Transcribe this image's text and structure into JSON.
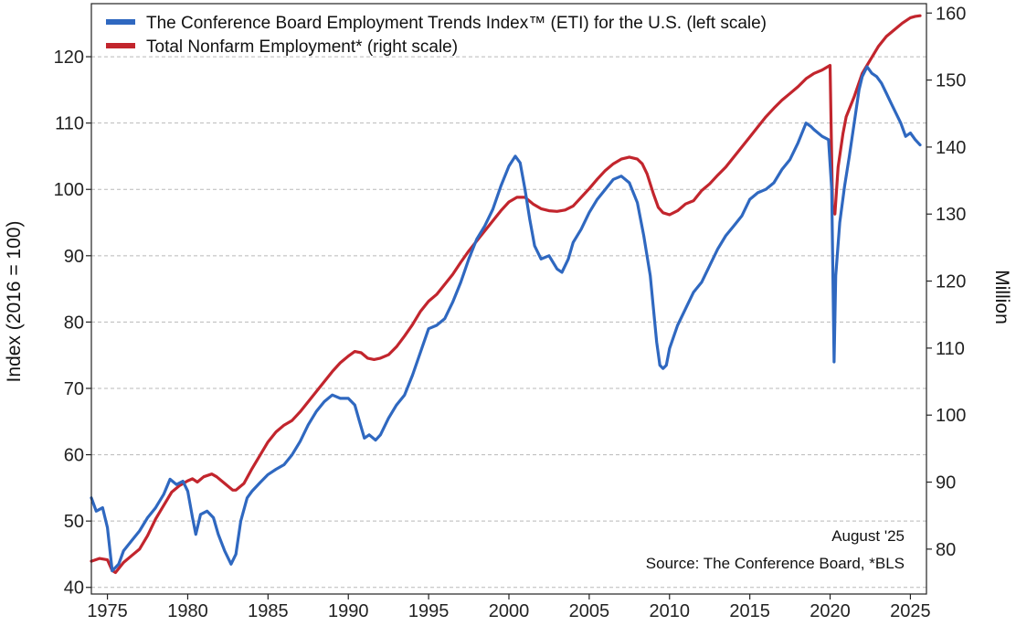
{
  "chart_data": {
    "type": "line",
    "legend_position": "top-left",
    "y_left_label": "Index (2016 = 100)",
    "y_right_label": "Million",
    "x_range": [
      1974,
      2026
    ],
    "y_left_range": [
      39,
      128
    ],
    "y_right_range": [
      73.3,
      161.4
    ],
    "x_ticks": [
      1975,
      1980,
      1985,
      1990,
      1995,
      2000,
      2005,
      2010,
      2015,
      2020,
      2025
    ],
    "y_left_ticks": [
      40,
      50,
      60,
      70,
      80,
      90,
      100,
      110,
      120
    ],
    "y_right_ticks": [
      80,
      90,
      100,
      110,
      120,
      130,
      140,
      150,
      160
    ],
    "series": [
      {
        "name": "The Conference Board Employment Trends Index™ (ETI) for the U.S. (left scale)",
        "axis": "left",
        "color": "#2f68c0",
        "x": [
          1974.0,
          1974.3,
          1974.7,
          1975.0,
          1975.3,
          1975.7,
          1976.0,
          1976.5,
          1977.0,
          1977.5,
          1978.0,
          1978.5,
          1978.9,
          1979.3,
          1979.7,
          1980.0,
          1980.3,
          1980.5,
          1980.8,
          1981.2,
          1981.6,
          1981.9,
          1982.3,
          1982.7,
          1983.0,
          1983.3,
          1983.7,
          1984.0,
          1984.5,
          1985.0,
          1985.5,
          1986.0,
          1986.5,
          1987.0,
          1987.5,
          1988.0,
          1988.5,
          1989.0,
          1989.5,
          1990.0,
          1990.4,
          1990.7,
          1991.0,
          1991.3,
          1991.7,
          1992.0,
          1992.5,
          1993.0,
          1993.5,
          1994.0,
          1994.5,
          1995.0,
          1995.5,
          1996.0,
          1996.5,
          1997.0,
          1997.5,
          1998.0,
          1998.5,
          1999.0,
          1999.5,
          2000.0,
          2000.4,
          2000.7,
          2001.0,
          2001.3,
          2001.6,
          2002.0,
          2002.5,
          2003.0,
          2003.3,
          2003.7,
          2004.0,
          2004.5,
          2005.0,
          2005.5,
          2006.0,
          2006.5,
          2007.0,
          2007.5,
          2008.0,
          2008.4,
          2008.8,
          2009.0,
          2009.2,
          2009.4,
          2009.6,
          2009.8,
          2010.0,
          2010.5,
          2011.0,
          2011.5,
          2012.0,
          2012.5,
          2013.0,
          2013.5,
          2014.0,
          2014.5,
          2015.0,
          2015.5,
          2016.0,
          2016.5,
          2017.0,
          2017.5,
          2018.0,
          2018.5,
          2018.8,
          2019.0,
          2019.5,
          2019.9,
          2020.1,
          2020.25,
          2020.35,
          2020.6,
          2020.9,
          2021.2,
          2021.5,
          2021.8,
          2022.0,
          2022.3,
          2022.6,
          2022.9,
          2023.2,
          2023.5,
          2023.8,
          2024.1,
          2024.4,
          2024.7,
          2025.0,
          2025.3,
          2025.6
        ],
        "values": [
          53.5,
          51.5,
          52.0,
          49.0,
          42.5,
          43.5,
          45.5,
          47.0,
          48.5,
          50.5,
          52.0,
          54.0,
          56.3,
          55.5,
          56.0,
          54.5,
          50.5,
          48.0,
          51.0,
          51.5,
          50.5,
          48.0,
          45.5,
          43.5,
          45.0,
          50.0,
          53.5,
          54.5,
          55.8,
          57.0,
          57.8,
          58.5,
          60.0,
          62.0,
          64.5,
          66.5,
          68.0,
          69.0,
          68.5,
          68.5,
          67.5,
          65.0,
          62.5,
          63.0,
          62.2,
          63.0,
          65.5,
          67.5,
          69.0,
          72.0,
          75.5,
          79.0,
          79.5,
          80.5,
          83.0,
          86.0,
          89.5,
          92.5,
          94.5,
          97.0,
          100.5,
          103.5,
          105.0,
          104.0,
          100.0,
          95.5,
          91.5,
          89.5,
          90.0,
          88.0,
          87.5,
          89.5,
          92.0,
          94.0,
          96.5,
          98.5,
          100.0,
          101.5,
          102.0,
          101.0,
          98.0,
          93.0,
          87.0,
          82.0,
          77.0,
          73.5,
          73.0,
          73.5,
          76.0,
          79.5,
          82.0,
          84.5,
          86.0,
          88.5,
          91.0,
          93.0,
          94.5,
          96.0,
          98.5,
          99.5,
          100.0,
          101.0,
          103.0,
          104.5,
          107.0,
          110.0,
          109.5,
          109.0,
          108.0,
          107.5,
          100.0,
          74.0,
          87.0,
          95.0,
          100.5,
          105.0,
          110.0,
          115.0,
          117.0,
          118.5,
          117.5,
          117.0,
          116.0,
          114.5,
          113.0,
          111.5,
          110.0,
          108.0,
          108.5,
          107.5,
          106.7
        ]
      },
      {
        "name": "Total Nonfarm Employment* (right scale)",
        "axis": "right",
        "color": "#c2252d",
        "x": [
          1974.0,
          1974.5,
          1975.0,
          1975.3,
          1975.5,
          1976.0,
          1976.5,
          1977.0,
          1977.5,
          1978.0,
          1978.5,
          1979.0,
          1979.5,
          1980.0,
          1980.3,
          1980.6,
          1981.0,
          1981.5,
          1981.8,
          1982.3,
          1982.8,
          1983.0,
          1983.5,
          1984.0,
          1984.5,
          1985.0,
          1985.5,
          1986.0,
          1986.5,
          1987.0,
          1987.5,
          1988.0,
          1988.5,
          1989.0,
          1989.5,
          1990.0,
          1990.4,
          1990.8,
          1991.2,
          1991.6,
          1992.0,
          1992.5,
          1993.0,
          1993.5,
          1994.0,
          1994.5,
          1995.0,
          1995.5,
          1996.0,
          1996.5,
          1997.0,
          1997.5,
          1998.0,
          1998.5,
          1999.0,
          1999.5,
          2000.0,
          2000.5,
          2001.0,
          2001.5,
          2002.0,
          2002.5,
          2003.0,
          2003.5,
          2004.0,
          2004.5,
          2005.0,
          2005.5,
          2006.0,
          2006.5,
          2007.0,
          2007.5,
          2008.0,
          2008.3,
          2008.6,
          2009.0,
          2009.3,
          2009.6,
          2010.0,
          2010.5,
          2011.0,
          2011.5,
          2012.0,
          2012.5,
          2013.0,
          2013.5,
          2014.0,
          2014.5,
          2015.0,
          2015.5,
          2016.0,
          2016.5,
          2017.0,
          2017.5,
          2018.0,
          2018.5,
          2019.0,
          2019.5,
          2020.0,
          2020.15,
          2020.3,
          2020.5,
          2020.8,
          2021.0,
          2021.5,
          2022.0,
          2022.5,
          2023.0,
          2023.5,
          2024.0,
          2024.5,
          2025.0,
          2025.3,
          2025.6
        ],
        "values": [
          78.2,
          78.6,
          78.4,
          76.8,
          76.5,
          78.0,
          79.0,
          80.0,
          82.0,
          84.5,
          86.5,
          88.5,
          89.5,
          90.2,
          90.5,
          90.0,
          90.8,
          91.2,
          90.8,
          89.8,
          88.8,
          88.8,
          89.8,
          92.0,
          94.0,
          96.0,
          97.5,
          98.5,
          99.2,
          100.5,
          102.0,
          103.5,
          105.0,
          106.5,
          107.8,
          108.8,
          109.5,
          109.3,
          108.5,
          108.3,
          108.5,
          109.0,
          110.2,
          111.8,
          113.5,
          115.5,
          117.0,
          118.0,
          119.5,
          121.0,
          122.8,
          124.5,
          126.0,
          127.5,
          129.0,
          130.5,
          131.8,
          132.5,
          132.5,
          131.5,
          130.8,
          130.5,
          130.4,
          130.6,
          131.2,
          132.5,
          133.8,
          135.2,
          136.5,
          137.5,
          138.2,
          138.5,
          138.2,
          137.5,
          136.0,
          133.0,
          131.0,
          130.2,
          129.9,
          130.5,
          131.5,
          132.0,
          133.5,
          134.5,
          135.8,
          137.0,
          138.5,
          140.0,
          141.5,
          143.0,
          144.5,
          145.8,
          147.0,
          148.0,
          149.0,
          150.2,
          151.0,
          151.5,
          152.2,
          131.0,
          130.0,
          137.0,
          142.0,
          144.5,
          147.5,
          151.0,
          153.0,
          155.0,
          156.5,
          157.5,
          158.5,
          159.3,
          159.5,
          159.6
        ]
      }
    ],
    "annotations": {
      "date_label": "August '25",
      "source": "Source: The Conference Board, *BLS"
    }
  }
}
